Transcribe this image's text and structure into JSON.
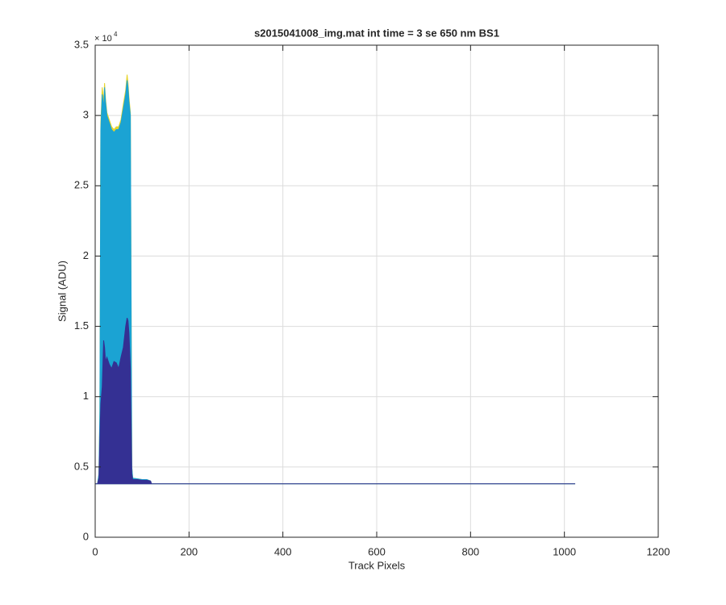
{
  "chart_data": {
    "type": "area",
    "title": "s2015041008_img.mat int time = 3 se  650 nm BS1",
    "x_label": "Track Pixels",
    "y_label": "Signal (ADU)",
    "y_multiplier": "× 10",
    "y_multiplier_exponent": "4",
    "xlim": [
      0,
      1200
    ],
    "xticks": [
      0,
      200,
      400,
      600,
      800,
      1000,
      1200
    ],
    "ylim": [
      0,
      35000
    ],
    "yticks": [
      0,
      {
        "value": 5000,
        "label": "0.5"
      },
      {
        "value": 10000,
        "label": "1"
      },
      {
        "value": 15000,
        "label": "1.5"
      },
      {
        "value": 20000,
        "label": "2"
      },
      {
        "value": 25000,
        "label": "2.5"
      },
      {
        "value": 30000,
        "label": "3"
      },
      {
        "value": 35000,
        "label": "3.5"
      }
    ],
    "grid": true,
    "x": [
      0,
      5,
      8,
      10,
      12,
      15,
      18,
      20,
      22,
      25,
      30,
      35,
      40,
      45,
      50,
      55,
      60,
      65,
      68,
      70,
      72,
      75,
      78,
      80,
      90,
      100,
      110,
      118,
      120,
      1023
    ],
    "series": [
      {
        "color": "#e6d42a",
        "values": [
          3800,
          3800,
          4500,
          9000,
          29500,
          32000,
          31000,
          32300,
          31200,
          30200,
          29700,
          29200,
          29000,
          29200,
          29200,
          29700,
          30800,
          31800,
          32900,
          32300,
          31300,
          30200,
          5000,
          4200,
          4150,
          4100,
          4100,
          4000,
          3800,
          3800
        ]
      },
      {
        "color": "#1ba3d3",
        "values": [
          3800,
          3800,
          4500,
          9000,
          29000,
          31500,
          30500,
          32000,
          31000,
          30000,
          29500,
          29000,
          28800,
          29000,
          29000,
          29500,
          30500,
          31500,
          32500,
          32000,
          31000,
          30000,
          5000,
          4200,
          4150,
          4100,
          4100,
          4000,
          3800,
          3800
        ]
      },
      {
        "color": "#343093",
        "values": [
          3800,
          3800,
          4200,
          7000,
          9500,
          10700,
          14000,
          13500,
          12500,
          12800,
          12300,
          12000,
          12500,
          12400,
          12000,
          12800,
          13500,
          15000,
          15600,
          15400,
          14500,
          12000,
          4500,
          4100,
          4100,
          4050,
          4050,
          4000,
          3800,
          3800
        ]
      }
    ]
  }
}
